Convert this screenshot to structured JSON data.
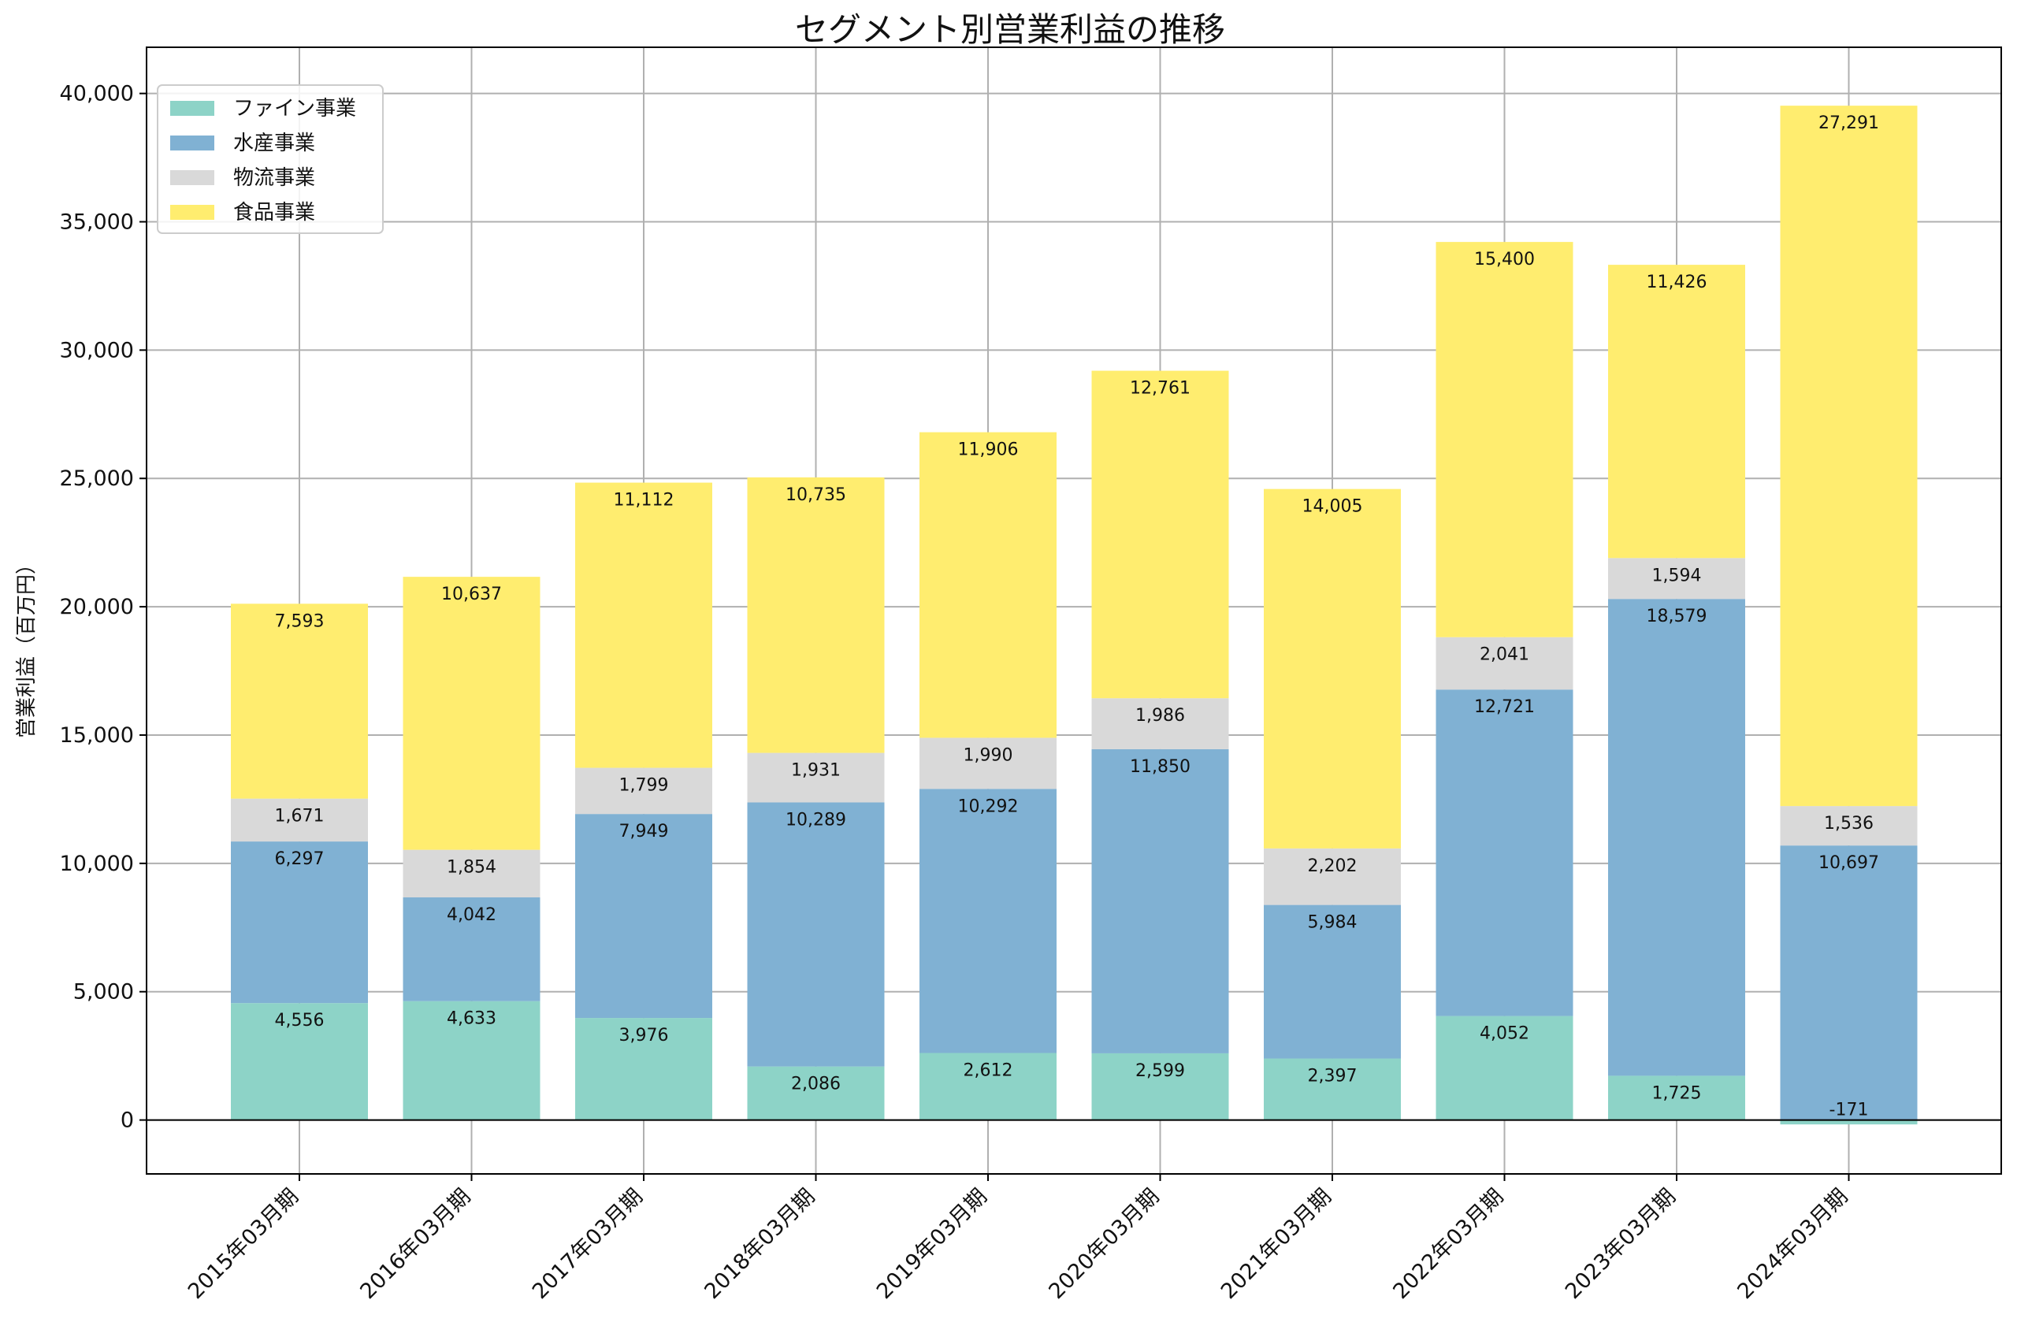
{
  "chart_data": {
    "type": "bar",
    "stacked": true,
    "title": "セグメント別営業利益の推移",
    "xlabel": "",
    "ylabel": "営業利益（百万円）",
    "ylim": [
      -2100,
      41800
    ],
    "yticks": [
      0,
      5000,
      10000,
      15000,
      20000,
      25000,
      30000,
      35000,
      40000
    ],
    "ytick_labels": [
      "0",
      "5,000",
      "10,000",
      "15,000",
      "20,000",
      "25,000",
      "30,000",
      "35,000",
      "40,000"
    ],
    "grid": true,
    "legend_position": "upper-left",
    "categories": [
      "2015年03月期",
      "2016年03月期",
      "2017年03月期",
      "2018年03月期",
      "2019年03月期",
      "2020年03月期",
      "2021年03月期",
      "2022年03月期",
      "2023年03月期",
      "2024年03月期"
    ],
    "series": [
      {
        "name": "ファイン事業",
        "color": "#8dd3c7",
        "values": [
          4556,
          4633,
          3976,
          2086,
          2612,
          2599,
          2397,
          4052,
          1725,
          -171
        ]
      },
      {
        "name": "水産事業",
        "color": "#80b1d3",
        "values": [
          6297,
          4042,
          7949,
          10289,
          10292,
          11850,
          5984,
          12721,
          18579,
          10697
        ]
      },
      {
        "name": "物流事業",
        "color": "#d9d9d9",
        "values": [
          1671,
          1854,
          1799,
          1931,
          1990,
          1986,
          2202,
          2041,
          1594,
          1536
        ]
      },
      {
        "name": "食品事業",
        "color": "#ffed6f",
        "values": [
          7593,
          10637,
          11112,
          10735,
          11906,
          12761,
          14005,
          15400,
          11426,
          27291
        ]
      }
    ]
  }
}
